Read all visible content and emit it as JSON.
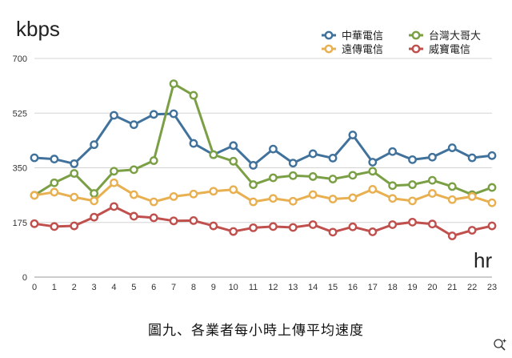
{
  "chart_data": {
    "type": "line",
    "ylabel": "kbps",
    "xlabel": "hr",
    "ylim": [
      0,
      700
    ],
    "yticks": [
      0,
      175,
      350,
      525,
      700
    ],
    "x": [
      0,
      1,
      2,
      3,
      4,
      5,
      6,
      7,
      8,
      9,
      10,
      11,
      12,
      13,
      14,
      15,
      16,
      17,
      18,
      19,
      20,
      21,
      22,
      23
    ],
    "grid": true,
    "legend_position": "top-right",
    "series": [
      {
        "name": "中華電信",
        "color": "#41729c",
        "values": [
          382,
          378,
          363,
          424,
          518,
          488,
          521,
          523,
          428,
          392,
          421,
          358,
          410,
          365,
          395,
          381,
          455,
          368,
          402,
          376,
          384,
          414,
          382,
          389
        ]
      },
      {
        "name": "台灣大哥大",
        "color": "#7a9f45",
        "values": [
          262,
          302,
          332,
          268,
          339,
          344,
          373,
          619,
          582,
          392,
          371,
          296,
          318,
          325,
          322,
          314,
          326,
          339,
          293,
          296,
          310,
          290,
          264,
          287
        ]
      },
      {
        "name": "遠傳電信",
        "color": "#e8b050",
        "values": [
          262,
          272,
          256,
          244,
          302,
          264,
          241,
          258,
          266,
          275,
          280,
          241,
          252,
          243,
          264,
          250,
          254,
          281,
          252,
          244,
          268,
          248,
          258,
          238
        ]
      },
      {
        "name": "威寶電信",
        "color": "#c0504d",
        "values": [
          171,
          162,
          164,
          192,
          226,
          195,
          190,
          180,
          181,
          164,
          146,
          158,
          162,
          159,
          168,
          144,
          161,
          145,
          168,
          176,
          170,
          132,
          150,
          164
        ]
      }
    ]
  },
  "caption": "圖九、各業者每小時上傳平均速度"
}
